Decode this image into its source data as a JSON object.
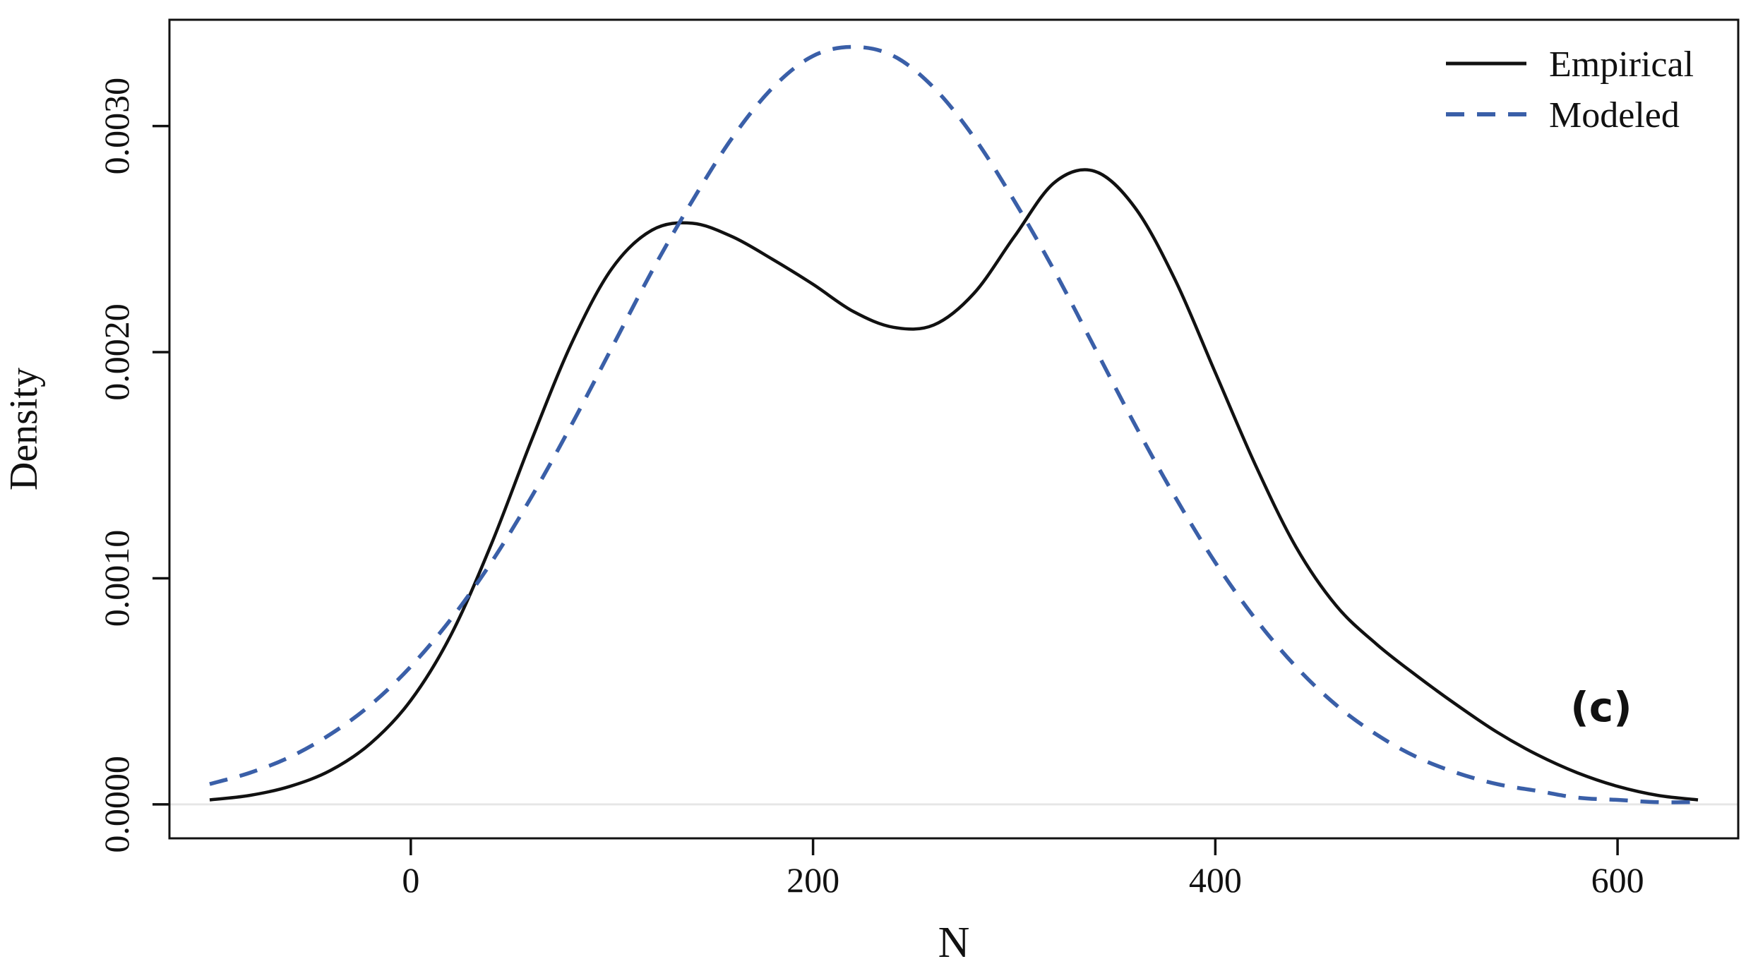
{
  "figure": {
    "panel_label": "(c)"
  },
  "chart_data": {
    "type": "line",
    "title": "",
    "xlabel": "N",
    "ylabel": "Density",
    "grid": false,
    "legend_position": "top-right",
    "xlim": [
      -120,
      660
    ],
    "ylim": [
      -0.00015,
      0.00347
    ],
    "x_ticks": {
      "values": [
        0,
        200,
        400,
        600
      ],
      "labels": [
        "0",
        "200",
        "400",
        "600"
      ]
    },
    "y_ticks": {
      "values": [
        0,
        0.001,
        0.002,
        0.003
      ],
      "labels": [
        "0.0000",
        "0.0010",
        "0.0020",
        "0.0030"
      ]
    },
    "axis_color": "#111111",
    "zero_line_color": "#e6e6e6",
    "series": [
      {
        "name": "Empirical",
        "style": "solid",
        "color": "#111111",
        "x": [
          -100,
          -80,
          -60,
          -40,
          -20,
          0,
          20,
          40,
          60,
          80,
          100,
          120,
          140,
          160,
          180,
          200,
          220,
          240,
          260,
          280,
          300,
          320,
          340,
          360,
          380,
          400,
          420,
          440,
          460,
          480,
          500,
          520,
          540,
          560,
          580,
          600,
          620,
          640
        ],
        "y": [
          2e-05,
          4e-05,
          8e-05,
          0.00015,
          0.00027,
          0.00046,
          0.00075,
          0.00115,
          0.00161,
          0.00204,
          0.00237,
          0.00254,
          0.00257,
          0.00251,
          0.00241,
          0.0023,
          0.00218,
          0.00211,
          0.00212,
          0.00226,
          0.00251,
          0.00275,
          0.0028,
          0.00264,
          0.00232,
          0.00191,
          0.0015,
          0.00114,
          0.00088,
          0.00071,
          0.00057,
          0.00044,
          0.00032,
          0.00022,
          0.00014,
          8e-05,
          4e-05,
          2e-05
        ]
      },
      {
        "name": "Modeled",
        "style": "dashed",
        "color": "#3a5fa8",
        "x": [
          -100,
          -80,
          -60,
          -40,
          -20,
          0,
          20,
          40,
          60,
          80,
          100,
          120,
          140,
          160,
          180,
          200,
          220,
          240,
          260,
          280,
          300,
          320,
          340,
          360,
          380,
          400,
          420,
          440,
          460,
          480,
          500,
          520,
          540,
          560,
          580,
          600,
          620,
          640
        ],
        "y": [
          9e-05,
          0.00014,
          0.00021,
          0.00031,
          0.00044,
          0.00061,
          0.00082,
          0.00107,
          0.00136,
          0.00168,
          0.00202,
          0.00236,
          0.00267,
          0.00295,
          0.00317,
          0.00331,
          0.00335,
          0.00331,
          0.00317,
          0.00295,
          0.00267,
          0.00236,
          0.00202,
          0.00168,
          0.00136,
          0.00107,
          0.00082,
          0.00061,
          0.00044,
          0.00031,
          0.00021,
          0.00014,
          9e-05,
          6e-05,
          3e-05,
          2e-05,
          1e-05,
          1e-05
        ]
      }
    ],
    "annotations": [
      {
        "text": "(c)",
        "x": 585,
        "y": 0.00049
      }
    ]
  }
}
